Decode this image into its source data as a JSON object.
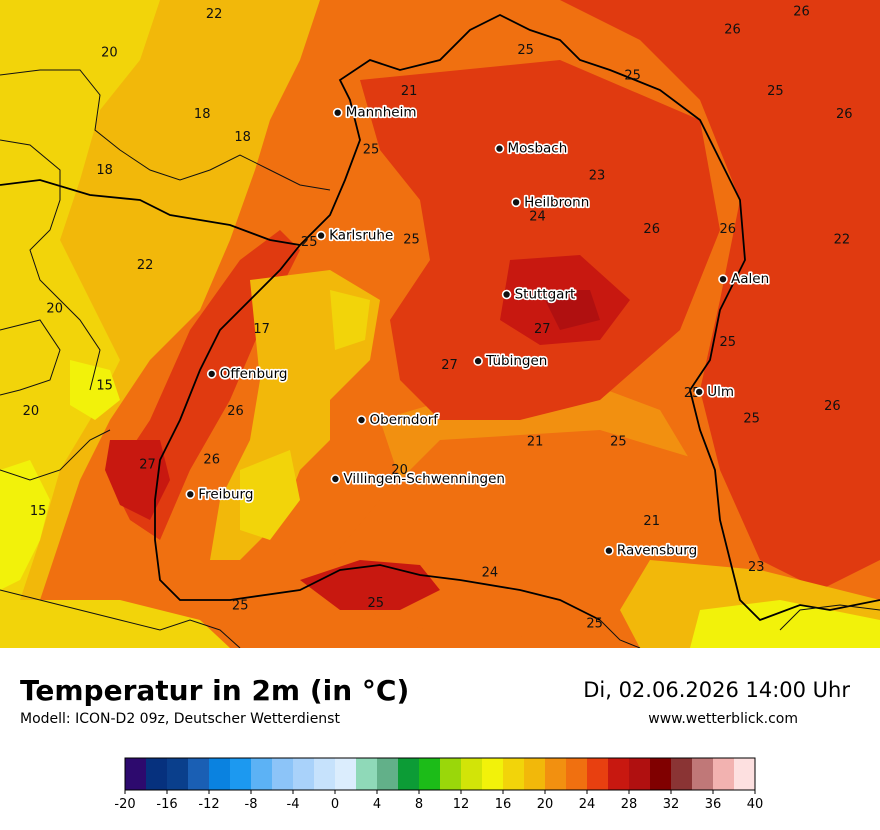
{
  "header": {
    "title": "Temperatur in 2m (in °C)",
    "model": "Modell: ICON-D2 09z, Deutscher Wetterdienst",
    "datetime": "Di, 02.06.2026 14:00 Uhr",
    "website": "www.wetterblick.com"
  },
  "cities": [
    {
      "name": "Mannheim",
      "lon": 8.47,
      "lat": 49.49
    },
    {
      "name": "Mosbach",
      "lon": 9.15,
      "lat": 49.35
    },
    {
      "name": "Heilbronn",
      "lon": 9.22,
      "lat": 49.14
    },
    {
      "name": "Karlsruhe",
      "lon": 8.4,
      "lat": 49.01
    },
    {
      "name": "Aalen",
      "lon": 10.09,
      "lat": 48.84
    },
    {
      "name": "Stuttgart",
      "lon": 9.18,
      "lat": 48.78
    },
    {
      "name": "Tübingen",
      "lon": 9.06,
      "lat": 48.52
    },
    {
      "name": "Offenburg",
      "lon": 7.94,
      "lat": 48.47
    },
    {
      "name": "Ulm",
      "lon": 9.99,
      "lat": 48.4
    },
    {
      "name": "Oberndorf",
      "lon": 8.57,
      "lat": 48.29
    },
    {
      "name": "Villingen-Schwenningen",
      "lon": 8.46,
      "lat": 48.06
    },
    {
      "name": "Freiburg",
      "lon": 7.85,
      "lat": 48.0
    },
    {
      "name": "Ravensburg",
      "lon": 9.61,
      "lat": 47.78
    }
  ],
  "temperature_labels": [
    {
      "value": "22",
      "lon": 7.95,
      "lat": 49.86
    },
    {
      "value": "20",
      "lon": 7.51,
      "lat": 49.71
    },
    {
      "value": "26",
      "lon": 10.42,
      "lat": 49.87
    },
    {
      "value": "26",
      "lon": 10.13,
      "lat": 49.8
    },
    {
      "value": "25",
      "lon": 9.26,
      "lat": 49.72
    },
    {
      "value": "25",
      "lon": 9.71,
      "lat": 49.62
    },
    {
      "value": "21",
      "lon": 8.77,
      "lat": 49.56
    },
    {
      "value": "25",
      "lon": 10.31,
      "lat": 49.56
    },
    {
      "value": "18",
      "lon": 7.9,
      "lat": 49.47
    },
    {
      "value": "26",
      "lon": 10.6,
      "lat": 49.47
    },
    {
      "value": "18",
      "lon": 8.07,
      "lat": 49.38
    },
    {
      "value": "25",
      "lon": 8.61,
      "lat": 49.33
    },
    {
      "value": "18",
      "lon": 7.49,
      "lat": 49.25
    },
    {
      "value": "23",
      "lon": 9.56,
      "lat": 49.23
    },
    {
      "value": "24",
      "lon": 9.31,
      "lat": 49.07
    },
    {
      "value": "26",
      "lon": 9.79,
      "lat": 49.02
    },
    {
      "value": "26",
      "lon": 10.11,
      "lat": 49.02
    },
    {
      "value": "22",
      "lon": 10.59,
      "lat": 48.98
    },
    {
      "value": "25",
      "lon": 8.78,
      "lat": 48.98
    },
    {
      "value": "25",
      "lon": 8.35,
      "lat": 48.97
    },
    {
      "value": "22",
      "lon": 7.66,
      "lat": 48.88
    },
    {
      "value": "20",
      "lon": 7.28,
      "lat": 48.71
    },
    {
      "value": "17",
      "lon": 8.15,
      "lat": 48.63
    },
    {
      "value": "27",
      "lon": 9.33,
      "lat": 48.63
    },
    {
      "value": "25",
      "lon": 10.11,
      "lat": 48.58
    },
    {
      "value": "27",
      "lon": 8.94,
      "lat": 48.49
    },
    {
      "value": "15",
      "lon": 7.49,
      "lat": 48.41
    },
    {
      "value": "25",
      "lon": 9.96,
      "lat": 48.38
    },
    {
      "value": "20",
      "lon": 7.18,
      "lat": 48.31
    },
    {
      "value": "26",
      "lon": 8.04,
      "lat": 48.31
    },
    {
      "value": "26",
      "lon": 10.55,
      "lat": 48.33
    },
    {
      "value": "25",
      "lon": 10.21,
      "lat": 48.28
    },
    {
      "value": "21",
      "lon": 9.3,
      "lat": 48.19
    },
    {
      "value": "25",
      "lon": 9.65,
      "lat": 48.19
    },
    {
      "value": "27",
      "lon": 7.67,
      "lat": 48.1
    },
    {
      "value": "26",
      "lon": 7.94,
      "lat": 48.12
    },
    {
      "value": "20",
      "lon": 8.73,
      "lat": 48.08
    },
    {
      "value": "15",
      "lon": 7.21,
      "lat": 47.92
    },
    {
      "value": "21",
      "lon": 9.79,
      "lat": 47.88
    },
    {
      "value": "23",
      "lon": 10.23,
      "lat": 47.7
    },
    {
      "value": "24",
      "lon": 9.11,
      "lat": 47.68
    },
    {
      "value": "25",
      "lon": 8.06,
      "lat": 47.55
    },
    {
      "value": "25",
      "lon": 8.63,
      "lat": 47.56
    },
    {
      "value": "25",
      "lon": 9.55,
      "lat": 47.48
    }
  ],
  "legend": {
    "tick_labels": [
      "-20",
      "-16",
      "-12",
      "-8",
      "-4",
      "0",
      "4",
      "8",
      "12",
      "16",
      "20",
      "24",
      "28",
      "32",
      "36",
      "40"
    ],
    "colors": [
      "#2d0a6e",
      "#06317e",
      "#0a3f8c",
      "#1a5fb4",
      "#0a82e0",
      "#1c99f0",
      "#5cb2f5",
      "#8cc4f8",
      "#a9d2fa",
      "#c6e2fc",
      "#dbedfd",
      "#8fd9b8",
      "#62b089",
      "#0c9c36",
      "#1cbc18",
      "#9ad70a",
      "#d2e408",
      "#f2f20a",
      "#f2d40a",
      "#f2b80a",
      "#f29010",
      "#f07010",
      "#e84010",
      "#c81810",
      "#b01010",
      "#800000",
      "#8a3434",
      "#c07878",
      "#f2b2b0",
      "#fde0e0"
    ]
  },
  "map": {
    "lon_min": 7.05,
    "lon_max": 10.75,
    "lat_min": 47.4,
    "lat_max": 49.93,
    "temperature_field_colors": {
      "t15": "#f2d40a",
      "t17": "#f2b80a",
      "t19": "#f29010",
      "t21": "#f07010",
      "t23": "#e84010",
      "t25": "#e03a10",
      "t27": "#c81810",
      "t29": "#b01010",
      "t12": "#f2f20a"
    }
  }
}
